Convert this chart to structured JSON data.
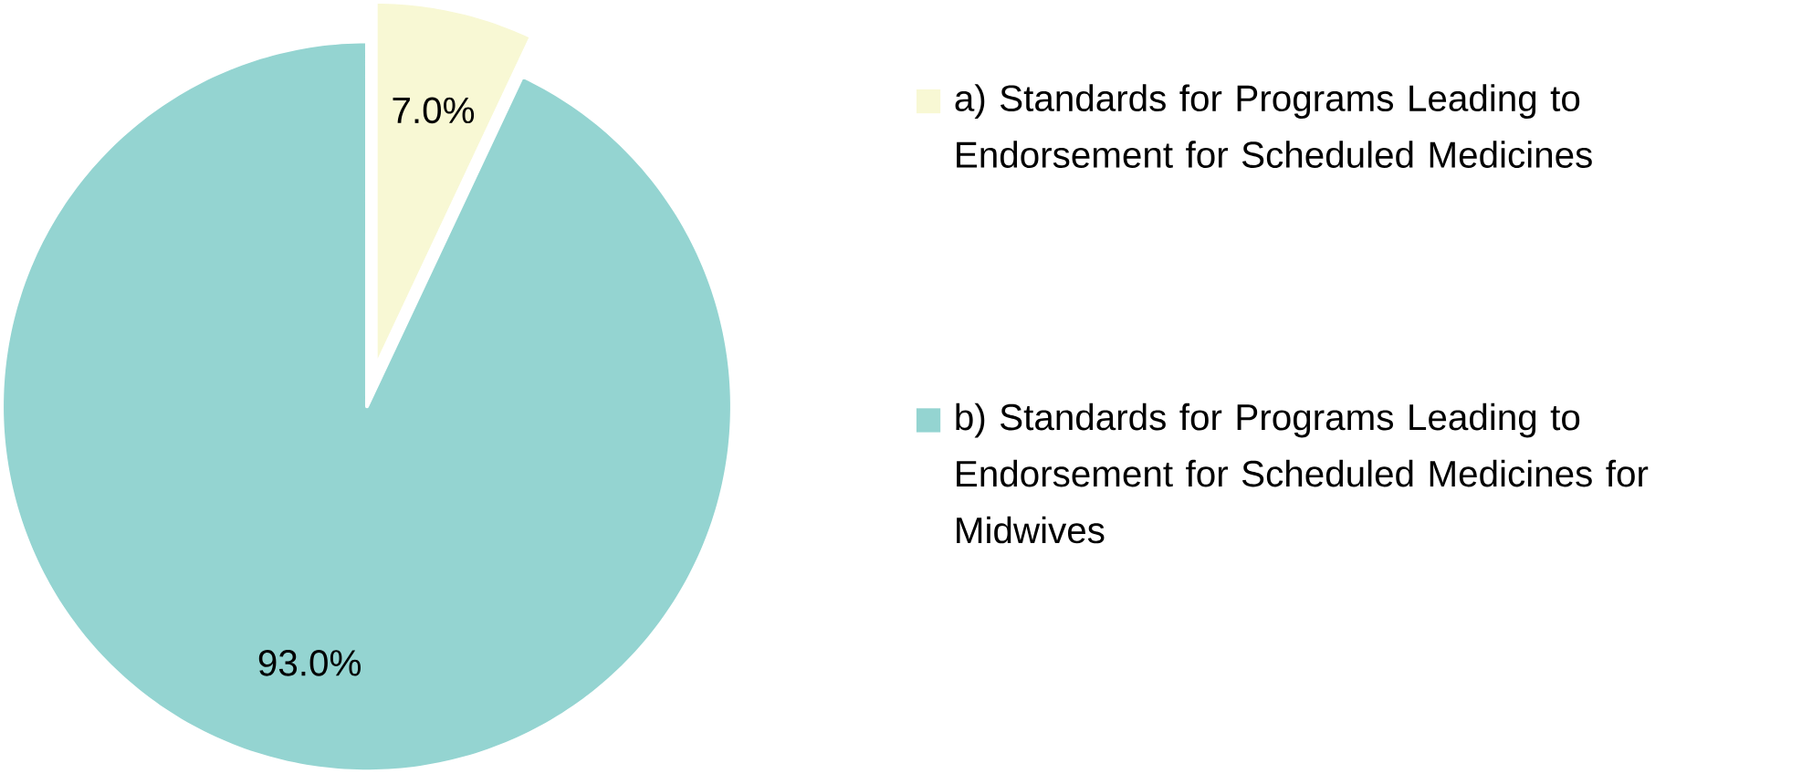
{
  "chart_data": {
    "type": "pie",
    "categories": [
      "a) Standards for Programs Leading to Endorsement for Scheduled Medicines",
      "b) Standards for Programs Leading to Endorsement for Scheduled Medicines for Midwives"
    ],
    "values": [
      7.0,
      93.0
    ],
    "value_labels": [
      "7.0%",
      "93.0%"
    ],
    "colors": [
      "#f8f8d4",
      "#94d4d1"
    ],
    "legend": "right"
  }
}
